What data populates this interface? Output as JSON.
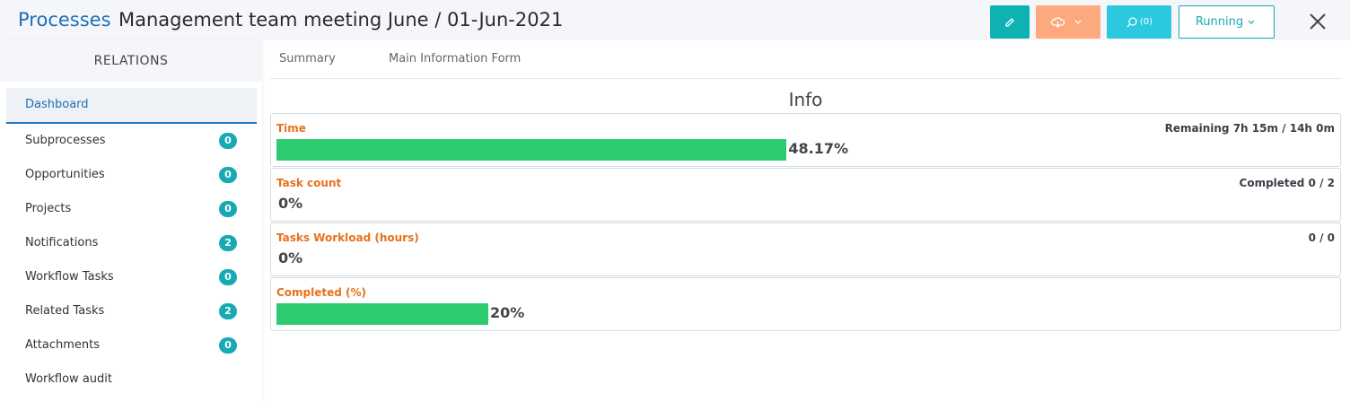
{
  "header": {
    "section": "Processes",
    "title": "Management team meeting June / 01-Jun-2021",
    "comments_button": "(0)",
    "status_button": "Running"
  },
  "sidebar": {
    "title": "RELATIONS",
    "items": [
      {
        "label": "Dashboard"
      },
      {
        "label": "Subprocesses",
        "count": 0
      },
      {
        "label": "Opportunities",
        "count": 0
      },
      {
        "label": "Projects",
        "count": 0
      },
      {
        "label": "Notifications",
        "count": 2
      },
      {
        "label": "Workflow Tasks",
        "count": 0
      },
      {
        "label": "Related Tasks",
        "count": 2
      },
      {
        "label": "Attachments",
        "count": 0
      },
      {
        "label": "Workflow audit"
      }
    ]
  },
  "tabs": [
    "Summary",
    "Main Information Form"
  ],
  "info": {
    "title": "Info",
    "metrics": [
      {
        "label": "Time",
        "detail": "Remaining 7h 15m / 14h 0m",
        "percent": 48.17,
        "percent_label": "48.17%"
      },
      {
        "label": "Task count",
        "detail": "Completed 0 / 2",
        "percent": 0,
        "percent_label": "0%"
      },
      {
        "label": "Tasks Workload (hours)",
        "detail": "0 / 0",
        "percent": 0,
        "percent_label": "0%"
      },
      {
        "label": "Completed (%)",
        "percent": 20,
        "percent_label": "20%"
      }
    ]
  }
}
